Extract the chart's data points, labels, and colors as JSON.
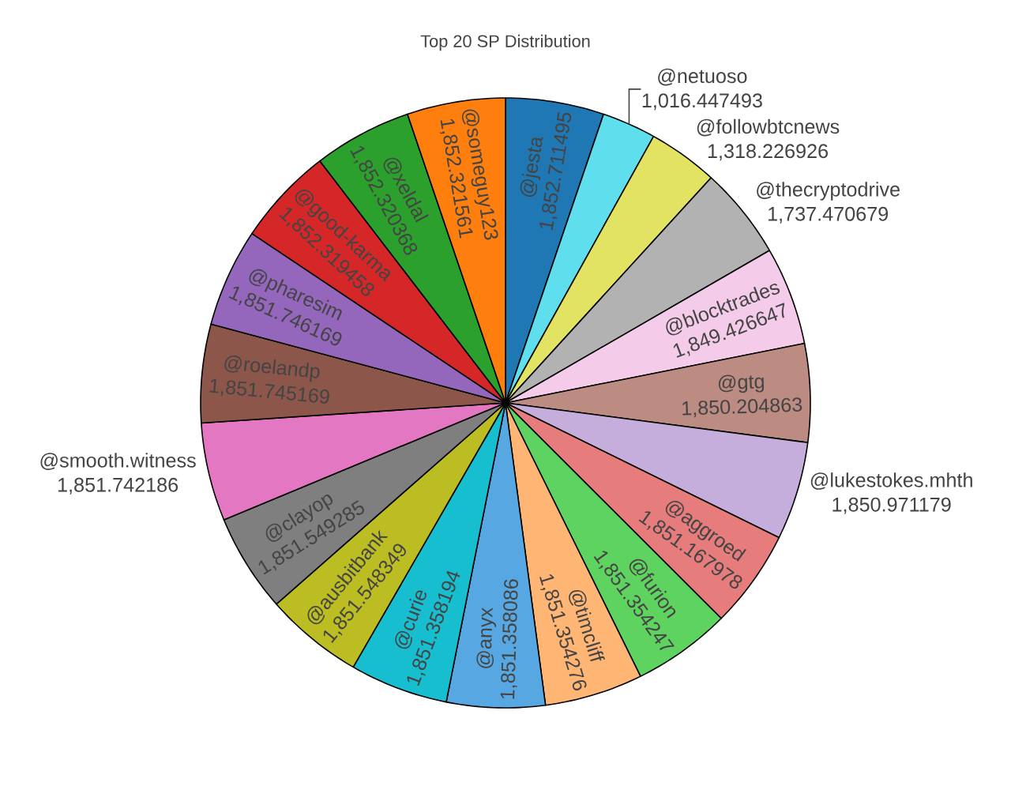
{
  "chart_data": {
    "type": "pie",
    "title": "Top 20 SP Distribution",
    "categories": [
      "@jesta",
      "@netuoso",
      "@followbtcnews",
      "@thecryptodrive",
      "@blocktrades",
      "@gtg",
      "@lukestokes.mhth",
      "@aggroed",
      "@furion",
      "@timcliff",
      "@anyx",
      "@curie",
      "@ausbitbank",
      "@clayop",
      "@smooth.witness",
      "@roelandp",
      "@pharesim",
      "@good-karma",
      "@xeldal",
      "@someguy123"
    ],
    "values": [
      1852.711495,
      1016.447493,
      1318.226926,
      1737.470679,
      1849.426647,
      1850.204863,
      1850.971179,
      1851.167978,
      1851.354247,
      1851.354276,
      1851.358086,
      1851.358194,
      1851.548349,
      1851.549285,
      1851.742186,
      1851.745169,
      1851.746169,
      1852.319458,
      1852.320368,
      1852.321561
    ],
    "value_labels": [
      "1,852.711495",
      "1,016.447493",
      "1,318.226926",
      "1,737.470679",
      "1,849.426647",
      "1,850.204863",
      "1,850.971179",
      "1,851.167978",
      "1,851.354247",
      "1,851.354276",
      "1,851.358086",
      "1,851.358194",
      "1,851.548349",
      "1,851.549285",
      "1,851.742186",
      "1,851.745169",
      "1,851.746169",
      "1,852.319458",
      "1,852.320368",
      "1,852.321561"
    ],
    "colors": [
      "#1f77b4",
      "#5fdfed",
      "#e2e362",
      "#b2b2b2",
      "#f4cbe8",
      "#bc8b82",
      "#c6aedc",
      "#e77c7c",
      "#5fd35f",
      "#ffb574",
      "#57a8e2",
      "#17becf",
      "#bcbd22",
      "#7f7f7f",
      "#e377c2",
      "#8c564b",
      "#9467bd",
      "#d62728",
      "#2ca02c",
      "#ff7f0e"
    ]
  }
}
